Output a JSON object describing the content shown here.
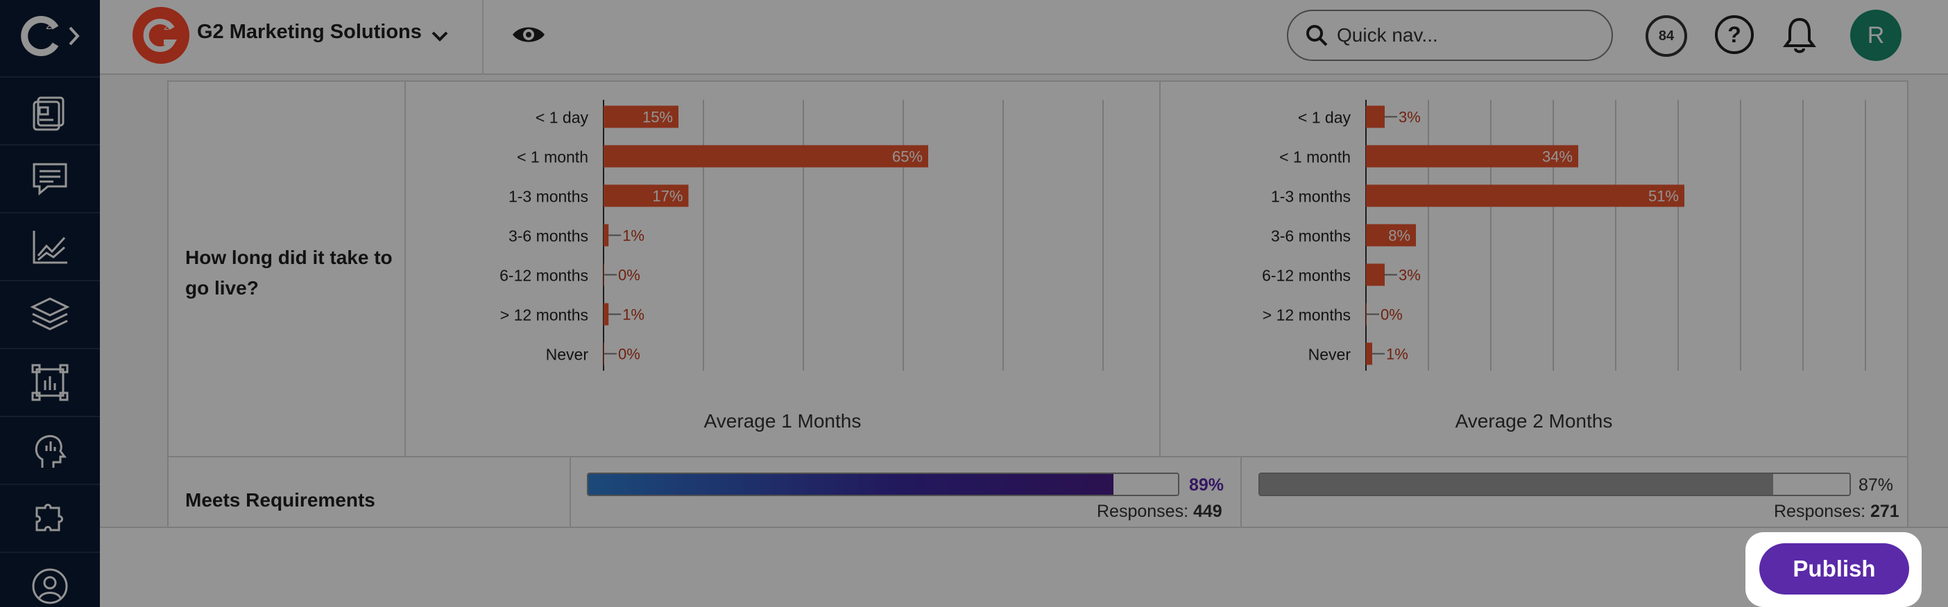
{
  "app": {
    "org_name": "G2 Marketing Solutions",
    "quicknav_placeholder": "Quick nav...",
    "score": "84",
    "avatar_initial": "R"
  },
  "sidebar": {
    "items": [
      {
        "icon": "dashboard-icon"
      },
      {
        "icon": "reviews-icon"
      },
      {
        "icon": "analytics-icon"
      },
      {
        "icon": "layers-icon"
      },
      {
        "icon": "reports-icon"
      },
      {
        "icon": "buyer-intent-icon"
      },
      {
        "icon": "integrations-icon"
      },
      {
        "icon": "profile-icon"
      }
    ]
  },
  "comparison": {
    "go_live": {
      "question": "How long did it take to go live?",
      "left": {
        "average": "Average 1 Months"
      },
      "right": {
        "average": "Average 2 Months"
      }
    },
    "meets_requirements": {
      "label": "Meets Requirements",
      "left": {
        "percent": 89,
        "percent_label": "89%",
        "responses_label": "Responses:",
        "responses": "449",
        "color": "#5a2aa8"
      },
      "right": {
        "percent": 87,
        "percent_label": "87%",
        "responses_label": "Responses:",
        "responses": "271",
        "color": "#9a9a9a"
      }
    }
  },
  "chart_data": [
    {
      "type": "bar",
      "orientation": "horizontal",
      "categories": [
        "< 1 day",
        "< 1 month",
        "1-3 months",
        "3-6 months",
        "6-12 months",
        "> 12 months",
        "Never"
      ],
      "values": [
        15,
        65,
        17,
        1,
        0,
        1,
        0
      ],
      "value_labels": [
        "15%",
        "65%",
        "17%",
        "1%",
        "0%",
        "1%",
        "0%"
      ],
      "xlim": [
        0,
        100
      ],
      "grid": true,
      "color": "#e8552f"
    },
    {
      "type": "bar",
      "orientation": "horizontal",
      "categories": [
        "< 1 day",
        "< 1 month",
        "1-3 months",
        "3-6 months",
        "6-12 months",
        "> 12 months",
        "Never"
      ],
      "values": [
        3,
        34,
        51,
        8,
        3,
        0,
        1
      ],
      "value_labels": [
        "3%",
        "34%",
        "51%",
        "8%",
        "3%",
        "0%",
        "1%"
      ],
      "xlim": [
        0,
        100
      ],
      "grid": true,
      "color": "#e8552f"
    }
  ],
  "footer": {
    "publish_label": "Publish",
    "publish_color": "#5a2aa8"
  }
}
